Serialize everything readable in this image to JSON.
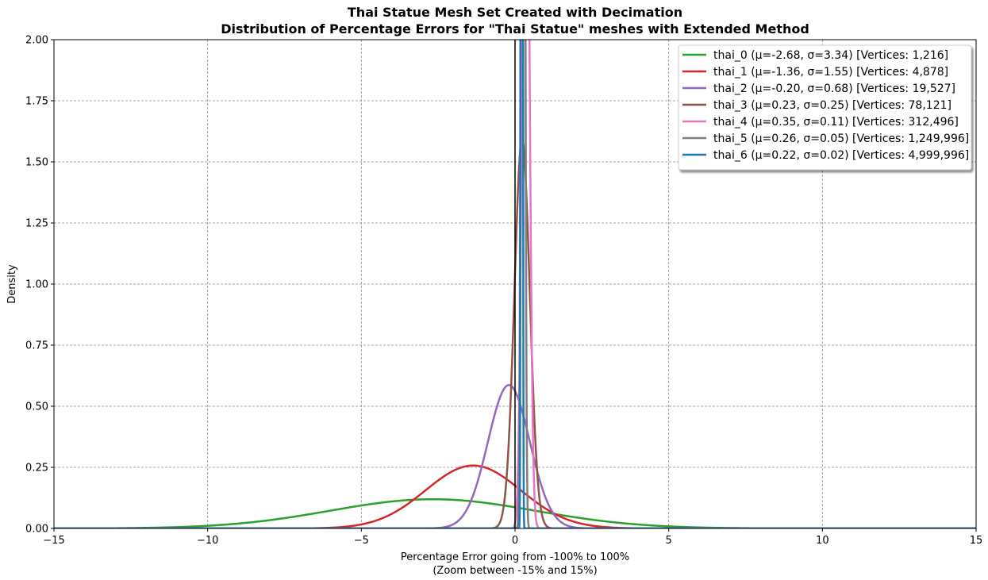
{
  "chart_data": {
    "type": "line",
    "title_lines": [
      "Thai Statue Mesh Set Created with Decimation",
      "Distribution of Percentage Errors for \"Thai Statue\" meshes with Extended Method"
    ],
    "xlabel_lines": [
      "Percentage Error going from -100% to 100%",
      "(Zoom between -15% and 15%)"
    ],
    "ylabel": "Density",
    "xlim": [
      -15,
      15
    ],
    "ylim": [
      0,
      2.0
    ],
    "x_ticks": [
      -15,
      -10,
      -5,
      0,
      5,
      10,
      15
    ],
    "x_tick_labels": [
      "−15",
      "−10",
      "−5",
      "0",
      "5",
      "10",
      "15"
    ],
    "y_ticks": [
      0,
      0.25,
      0.5,
      0.75,
      1.0,
      1.25,
      1.5,
      1.75,
      2.0
    ],
    "y_tick_labels": [
      "0.00",
      "0.25",
      "0.50",
      "0.75",
      "1.00",
      "1.25",
      "1.50",
      "1.75",
      "2.00"
    ],
    "grid": true,
    "legend_position": "top-right",
    "vertical_reference_line": {
      "x": 0,
      "color": "#000000"
    },
    "series": [
      {
        "name": "thai_0 (μ=-2.68, σ=3.34) [Vertices: 1,216]",
        "mu": -2.68,
        "sigma": 3.34,
        "color": "#2ca02c"
      },
      {
        "name": "thai_1 (μ=-1.36, σ=1.55) [Vertices: 4,878]",
        "mu": -1.36,
        "sigma": 1.55,
        "color": "#d62728"
      },
      {
        "name": "thai_2 (μ=-0.20, σ=0.68) [Vertices: 19,527]",
        "mu": -0.2,
        "sigma": 0.68,
        "color": "#9467bd"
      },
      {
        "name": "thai_3 (μ=0.23, σ=0.25) [Vertices: 78,121]",
        "mu": 0.23,
        "sigma": 0.25,
        "color": "#8c564b"
      },
      {
        "name": "thai_4 (μ=0.35, σ=0.11) [Vertices: 312,496]",
        "mu": 0.35,
        "sigma": 0.11,
        "color": "#e377c2"
      },
      {
        "name": "thai_5 (μ=0.26, σ=0.05) [Vertices: 1,249,996]",
        "mu": 0.26,
        "sigma": 0.05,
        "color": "#7f7f7f"
      },
      {
        "name": "thai_6 (μ=0.22, σ=0.02) [Vertices: 4,999,996]",
        "mu": 0.22,
        "sigma": 0.02,
        "color": "#1f77b4"
      }
    ]
  }
}
